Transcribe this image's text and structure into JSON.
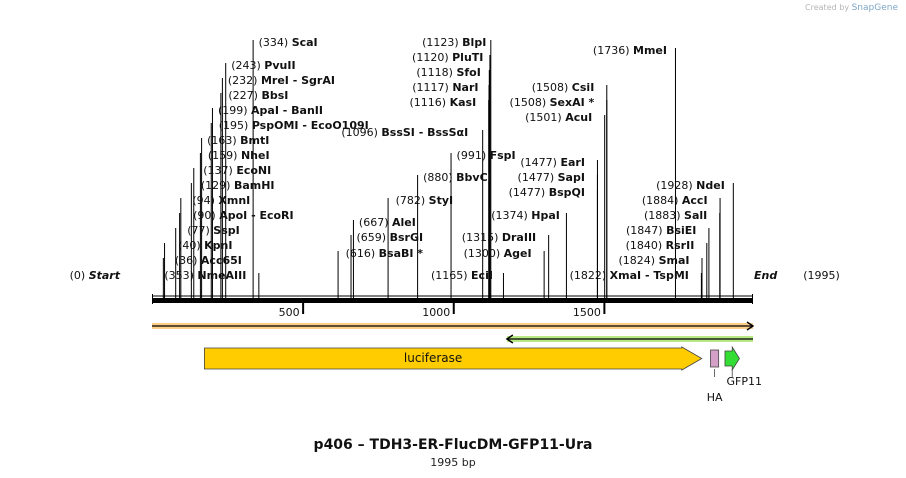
{
  "credit": {
    "prefix": "Created by",
    "brand": "SnapGene"
  },
  "title": "p406 – TDH3-ER-FlucDM-GFP11-Ura",
  "subtitle": "1995 bp",
  "sequence_length": 1995,
  "axis": {
    "ticks": [
      500,
      1000,
      1500
    ]
  },
  "ends": {
    "start": {
      "pos": "(0)",
      "label": "Start",
      "bp": 0
    },
    "end": {
      "label": "End",
      "pos": "(1995)",
      "bp": 1995
    }
  },
  "sites": [
    {
      "pos": "(36)",
      "name": "Acc65I",
      "bp": 36
    },
    {
      "pos": "(40)",
      "name": "KpnI",
      "bp": 40
    },
    {
      "pos": "(77)",
      "name": "SspI",
      "bp": 77
    },
    {
      "pos": "(90)",
      "name": "ApoI",
      "extra": " - EcoRI",
      "bp": 90
    },
    {
      "pos": "(94)",
      "name": "XmnI",
      "bp": 94
    },
    {
      "pos": "(129)",
      "name": "BamHI",
      "bp": 129
    },
    {
      "pos": "(137)",
      "name": "EcoNI",
      "bp": 137
    },
    {
      "pos": "(159)",
      "name": "NheI",
      "bp": 159
    },
    {
      "pos": "(163)",
      "name": "BmtI",
      "bp": 163
    },
    {
      "pos": "(195)",
      "name": "PspOMI",
      "extra": " - EcoO109I",
      "bp": 195
    },
    {
      "pos": "(199)",
      "name": "ApaI",
      "extra": " - BanII",
      "bp": 199
    },
    {
      "pos": "(227)",
      "name": "BbsI",
      "bp": 227
    },
    {
      "pos": "(232)",
      "name": "MreI",
      "extra": " - SgrAI",
      "bp": 232
    },
    {
      "pos": "(243)",
      "name": "PvuII",
      "bp": 243
    },
    {
      "pos": "(334)",
      "name": "ScaI",
      "bp": 334
    },
    {
      "pos": "(353)",
      "name": "NmeAIII",
      "bp": 353
    },
    {
      "pos": "(616)",
      "name": "BsaBI *",
      "bp": 616
    },
    {
      "pos": "(659)",
      "name": "BsrGI",
      "bp": 659
    },
    {
      "pos": "(667)",
      "name": "AleI",
      "bp": 667
    },
    {
      "pos": "(782)",
      "name": "StyI",
      "bp": 782
    },
    {
      "pos": "(880)",
      "name": "BbvCI",
      "bp": 880
    },
    {
      "pos": "(991)",
      "name": "FspI",
      "bp": 991
    },
    {
      "pos": "(1096)",
      "name": "BssSI",
      "extra": " - BssSαI",
      "bp": 1096
    },
    {
      "pos": "(1116)",
      "name": "KasI",
      "bp": 1116
    },
    {
      "pos": "(1117)",
      "name": "NarI",
      "bp": 1117
    },
    {
      "pos": "(1118)",
      "name": "SfoI",
      "bp": 1118
    },
    {
      "pos": "(1120)",
      "name": "PluTI",
      "bp": 1120
    },
    {
      "pos": "(1123)",
      "name": "BlpI",
      "bp": 1123
    },
    {
      "pos": "(1165)",
      "name": "EciI",
      "bp": 1165
    },
    {
      "pos": "(1300)",
      "name": "AgeI",
      "bp": 1300
    },
    {
      "pos": "(1315)",
      "name": "DraIII",
      "bp": 1315
    },
    {
      "pos": "(1374)",
      "name": "HpaI",
      "bp": 1374
    },
    {
      "pos": "(1477)",
      "name": "BspQI",
      "bp": 1477
    },
    {
      "pos": "(1477)",
      "name": "SapI",
      "bp": 1477
    },
    {
      "pos": "(1477)",
      "name": "EarI",
      "bp": 1477
    },
    {
      "pos": "(1501)",
      "name": "AcuI",
      "bp": 1501
    },
    {
      "pos": "(1508)",
      "name": "SexAI *",
      "bp": 1508
    },
    {
      "pos": "(1508)",
      "name": "CsiI",
      "bp": 1508
    },
    {
      "pos": "(1736)",
      "name": "MmeI",
      "bp": 1736
    },
    {
      "pos": "(1822)",
      "name": "XmaI",
      "extra": " - TspMI",
      "bp": 1822
    },
    {
      "pos": "(1824)",
      "name": "SmaI",
      "bp": 1824
    },
    {
      "pos": "(1840)",
      "name": "RsrII",
      "bp": 1840
    },
    {
      "pos": "(1847)",
      "name": "BsiEI",
      "bp": 1847
    },
    {
      "pos": "(1883)",
      "name": "SalI",
      "bp": 1883
    },
    {
      "pos": "(1884)",
      "name": "AccI",
      "bp": 1884
    },
    {
      "pos": "(1928)",
      "name": "NdeI",
      "bp": 1928
    }
  ],
  "orfs": [
    {
      "name": "orf-forward",
      "start_bp": 0,
      "end_bp": 1995,
      "direction": "forward",
      "color": "#f5a623"
    },
    {
      "name": "orf-reverse",
      "start_bp": 1178,
      "end_bp": 1995,
      "direction": "reverse",
      "color": "#7ed321"
    }
  ],
  "features": [
    {
      "label": "luciferase",
      "start_bp": 174,
      "end_bp": 1825,
      "direction": "forward",
      "color": "#ffcc00",
      "label_position": "inside"
    },
    {
      "label": "HA",
      "start_bp": 1854,
      "end_bp": 1881,
      "direction": "none",
      "color": "#d4a0c7",
      "label_position": "below"
    },
    {
      "label": "GFP11",
      "start_bp": 1902,
      "end_bp": 1950,
      "direction": "forward",
      "color": "#33dd33",
      "label_position": "below"
    }
  ],
  "colors": {
    "backbone": "#000000",
    "line": "#000000",
    "text": "#111111",
    "pos": "#111111",
    "hyphen": "#111111"
  }
}
